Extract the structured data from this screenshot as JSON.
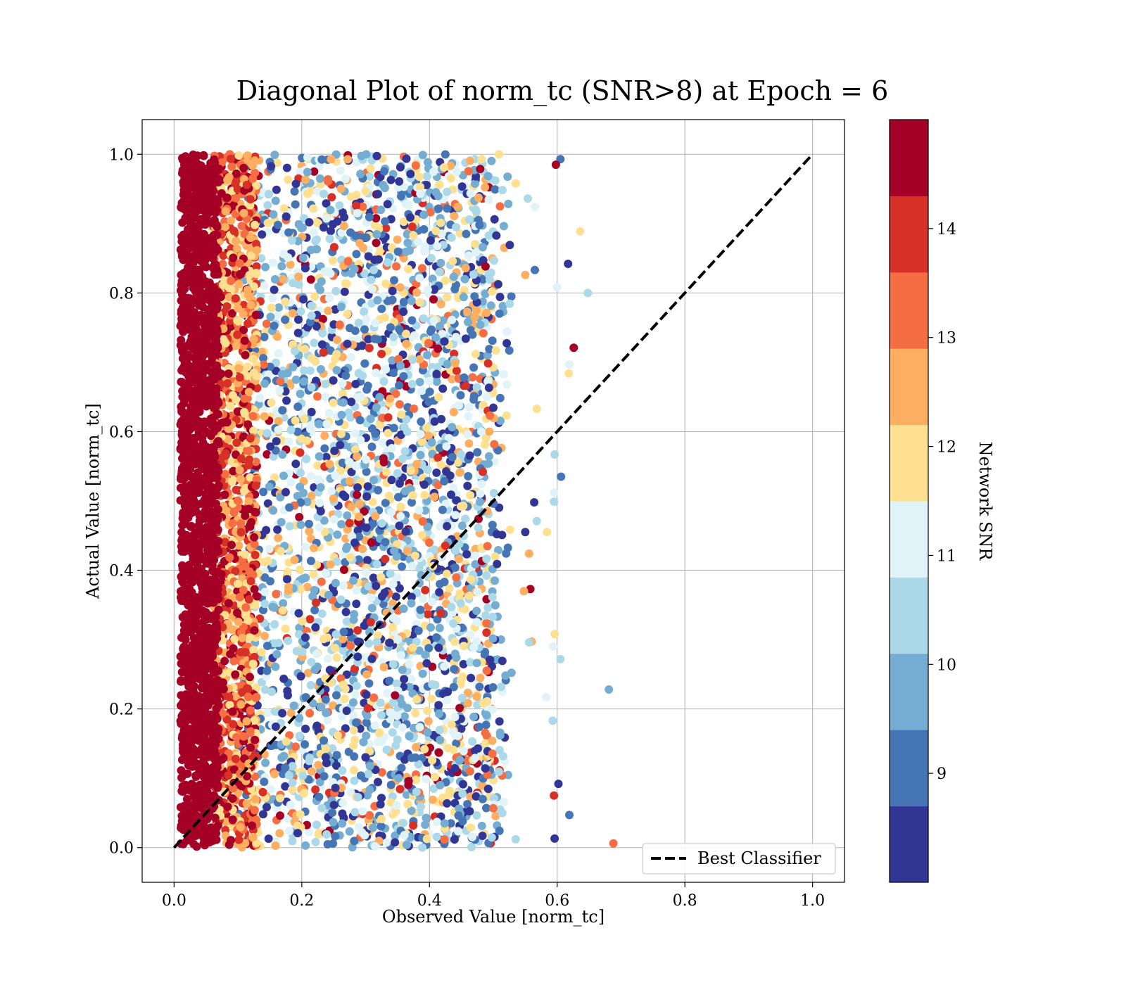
{
  "chart_data": {
    "type": "scatter",
    "title": "Diagonal Plot of norm_tc (SNR>8) at Epoch = 6",
    "xlabel": "Observed Value [norm_tc]",
    "ylabel": "Actual Value [norm_tc]",
    "xlim": [
      -0.05,
      1.05
    ],
    "ylim": [
      -0.05,
      1.05
    ],
    "x_ticks": [
      "0.0",
      "0.2",
      "0.4",
      "0.6",
      "0.8",
      "1.0"
    ],
    "y_ticks": [
      "0.0",
      "0.2",
      "0.4",
      "0.6",
      "0.8",
      "1.0"
    ],
    "grid": true,
    "reference_line": {
      "name": "Best Classifier",
      "style": "dashed",
      "color": "#000000",
      "x": [
        0.0,
        1.0
      ],
      "y": [
        0.0,
        1.0
      ]
    },
    "legend": {
      "position": "lower-right",
      "entries": [
        "Best Classifier"
      ]
    },
    "colorbar": {
      "label": "Network SNR",
      "vmin": 8.0,
      "vmax": 15.0,
      "ticks": [
        "9",
        "10",
        "11",
        "12",
        "13",
        "14"
      ],
      "tick_values": [
        9,
        10,
        11,
        12,
        13,
        14
      ],
      "levels": [
        8.0,
        8.7,
        9.4,
        10.1,
        10.8,
        11.5,
        12.2,
        12.9,
        13.6,
        14.3,
        15.0
      ],
      "colors": [
        "#313695",
        "#4575b4",
        "#74add1",
        "#abd9e9",
        "#e0f3f8",
        "#fee090",
        "#fdae61",
        "#f46d43",
        "#d73027",
        "#a50026"
      ]
    },
    "scatter_clusters": [
      {
        "description_region": "dense high-SNR band",
        "x_range": [
          0.01,
          0.07
        ],
        "y_range": [
          0.0,
          1.0
        ],
        "snr_range": [
          13.6,
          15.0
        ]
      },
      {
        "description_region": "mixed SNR band",
        "x_range": [
          0.06,
          0.13
        ],
        "y_range": [
          0.0,
          1.0
        ],
        "snr_range": [
          11.5,
          15.0
        ]
      },
      {
        "description_region": "low-mid SNR spread",
        "x_range": [
          0.1,
          0.53
        ],
        "y_range": [
          0.0,
          1.0
        ],
        "snr_range": [
          8.0,
          13.6
        ]
      }
    ],
    "outliers": [
      {
        "x": 0.605,
        "y": 0.993,
        "snr": 8.9
      },
      {
        "x": 0.598,
        "y": 0.985,
        "snr": 14.8
      },
      {
        "x": 0.535,
        "y": 0.958,
        "snr": 12.0
      },
      {
        "x": 0.554,
        "y": 0.936,
        "snr": 10.6
      },
      {
        "x": 0.565,
        "y": 0.924,
        "snr": 10.9
      },
      {
        "x": 0.636,
        "y": 0.889,
        "snr": 12.0
      },
      {
        "x": 0.617,
        "y": 0.842,
        "snr": 8.4
      },
      {
        "x": 0.565,
        "y": 0.833,
        "snr": 9.1
      },
      {
        "x": 0.55,
        "y": 0.826,
        "snr": 12.6
      },
      {
        "x": 0.6,
        "y": 0.808,
        "snr": 11.4
      },
      {
        "x": 0.648,
        "y": 0.8,
        "snr": 10.1
      },
      {
        "x": 0.626,
        "y": 0.721,
        "snr": 14.8
      },
      {
        "x": 0.619,
        "y": 0.697,
        "snr": 11.4
      },
      {
        "x": 0.618,
        "y": 0.684,
        "snr": 12.0
      },
      {
        "x": 0.568,
        "y": 0.633,
        "snr": 12.0
      },
      {
        "x": 0.596,
        "y": 0.567,
        "snr": 10.1
      },
      {
        "x": 0.606,
        "y": 0.535,
        "snr": 9.1
      },
      {
        "x": 0.595,
        "y": 0.512,
        "snr": 10.8
      },
      {
        "x": 0.564,
        "y": 0.498,
        "snr": 8.4
      },
      {
        "x": 0.595,
        "y": 0.499,
        "snr": 10.6
      },
      {
        "x": 0.568,
        "y": 0.471,
        "snr": 10.6
      },
      {
        "x": 0.584,
        "y": 0.455,
        "snr": 12.0
      },
      {
        "x": 0.55,
        "y": 0.455,
        "snr": 8.4
      },
      {
        "x": 0.556,
        "y": 0.424,
        "snr": 12.6
      },
      {
        "x": 0.558,
        "y": 0.373,
        "snr": 14.8
      },
      {
        "x": 0.548,
        "y": 0.37,
        "snr": 12.6
      },
      {
        "x": 0.596,
        "y": 0.308,
        "snr": 12.0
      },
      {
        "x": 0.56,
        "y": 0.297,
        "snr": 12.6
      },
      {
        "x": 0.556,
        "y": 0.296,
        "snr": 10.6
      },
      {
        "x": 0.594,
        "y": 0.29,
        "snr": 11.4
      },
      {
        "x": 0.605,
        "y": 0.272,
        "snr": 10.6
      },
      {
        "x": 0.681,
        "y": 0.228,
        "snr": 9.6
      },
      {
        "x": 0.583,
        "y": 0.217,
        "snr": 11.4
      },
      {
        "x": 0.593,
        "y": 0.183,
        "snr": 10.6
      },
      {
        "x": 0.602,
        "y": 0.092,
        "snr": 8.4
      },
      {
        "x": 0.595,
        "y": 0.075,
        "snr": 14.2
      },
      {
        "x": 0.619,
        "y": 0.047,
        "snr": 9.1
      },
      {
        "x": 0.596,
        "y": 0.013,
        "snr": 8.4
      },
      {
        "x": 0.688,
        "y": 0.006,
        "snr": 13.2
      },
      {
        "x": 0.535,
        "y": 0.012,
        "snr": 10.6
      }
    ]
  }
}
